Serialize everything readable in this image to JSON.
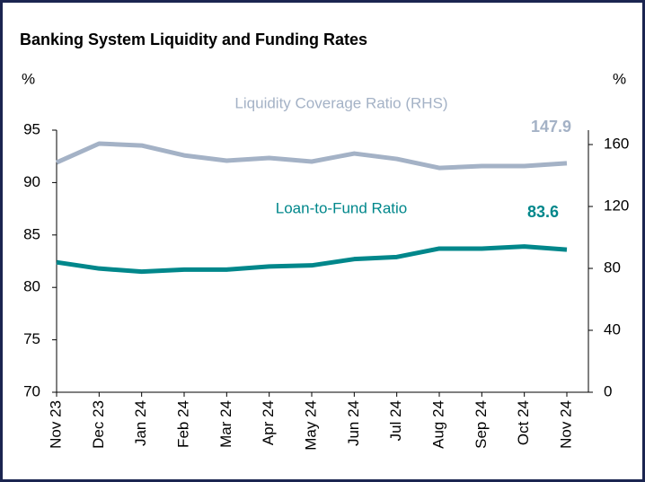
{
  "chart_data": {
    "type": "line",
    "title": "Banking System Liquidity and Funding Rates",
    "y_label": "%",
    "y2_label": "%",
    "categories": [
      "Nov 23",
      "Dec 23",
      "Jan 24",
      "Feb 24",
      "Mar 24",
      "Apr 24",
      "May 24",
      "Jun 24",
      "Jul 24",
      "Aug 24",
      "Sep 24",
      "Oct 24",
      "Nov 24"
    ],
    "series": [
      {
        "name": "Liquidity Coverage Ratio (RHS)",
        "color": "#a4b2c6",
        "axis": "y2",
        "values": [
          148.4,
          160.6,
          159.4,
          153.0,
          149.6,
          151.3,
          149.0,
          154.2,
          150.7,
          144.9,
          146.1,
          146.1,
          147.9
        ]
      },
      {
        "name": "Loan-to-Fund Ratio",
        "color": "#00878b",
        "values": [
          82.4,
          81.8,
          81.5,
          81.7,
          81.7,
          82.0,
          82.1,
          82.7,
          82.9,
          83.7,
          83.7,
          83.9,
          83.6
        ]
      }
    ],
    "ylim": [
      70,
      95
    ],
    "yticks": [
      70,
      75,
      80,
      85,
      90,
      95
    ],
    "y2lim": [
      0,
      169.3
    ],
    "y2ticks": [
      0,
      40,
      80,
      120,
      160
    ]
  }
}
